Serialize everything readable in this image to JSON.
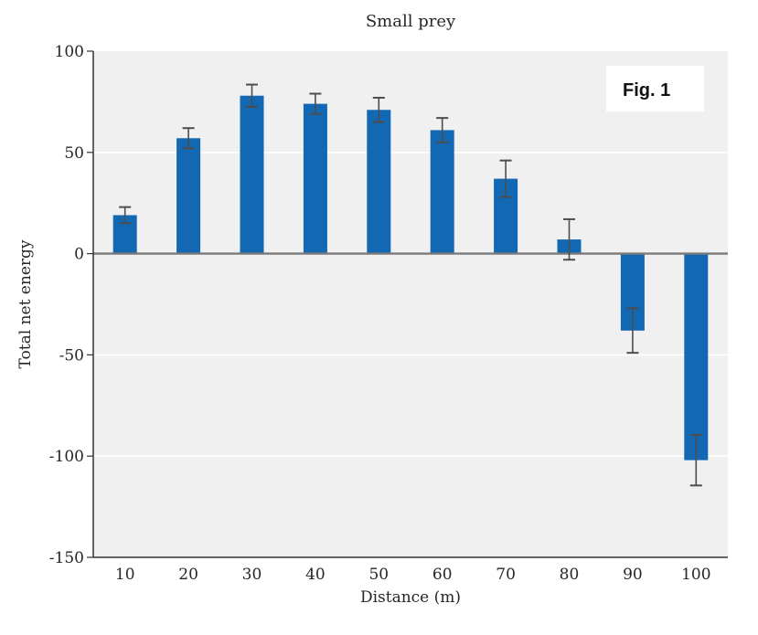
{
  "figure_label": "Fig. 1",
  "colors": {
    "bar": "#1268b3",
    "plot_background": "#f0f0f0",
    "gridline": "#ffffff",
    "zero_line": "#7a7a7a",
    "axis": "#333333",
    "error_bar": "#4d4d4d",
    "text": "#262626",
    "figure_box_background": "#ffffff",
    "page_background": "#ffffff"
  },
  "chart_data": {
    "type": "bar",
    "title": "Small prey",
    "xlabel": "Distance (m)",
    "ylabel": "Total net energy",
    "categories": [
      "10",
      "20",
      "30",
      "40",
      "50",
      "60",
      "70",
      "80",
      "90",
      "100"
    ],
    "values": [
      19,
      57,
      78,
      74,
      71,
      61,
      37,
      7,
      -38,
      -102
    ],
    "error_bars": [
      4,
      5,
      5.5,
      5,
      6,
      6,
      9,
      10,
      11,
      12.5
    ],
    "ylim": [
      -150,
      100
    ],
    "yticks": [
      100,
      50,
      0,
      -50,
      -100,
      -150
    ],
    "grid": "horizontal",
    "legend": null,
    "annotations": [
      {
        "text": "Fig. 1",
        "position": "top-right",
        "style": "white box, sans-serif"
      }
    ]
  }
}
